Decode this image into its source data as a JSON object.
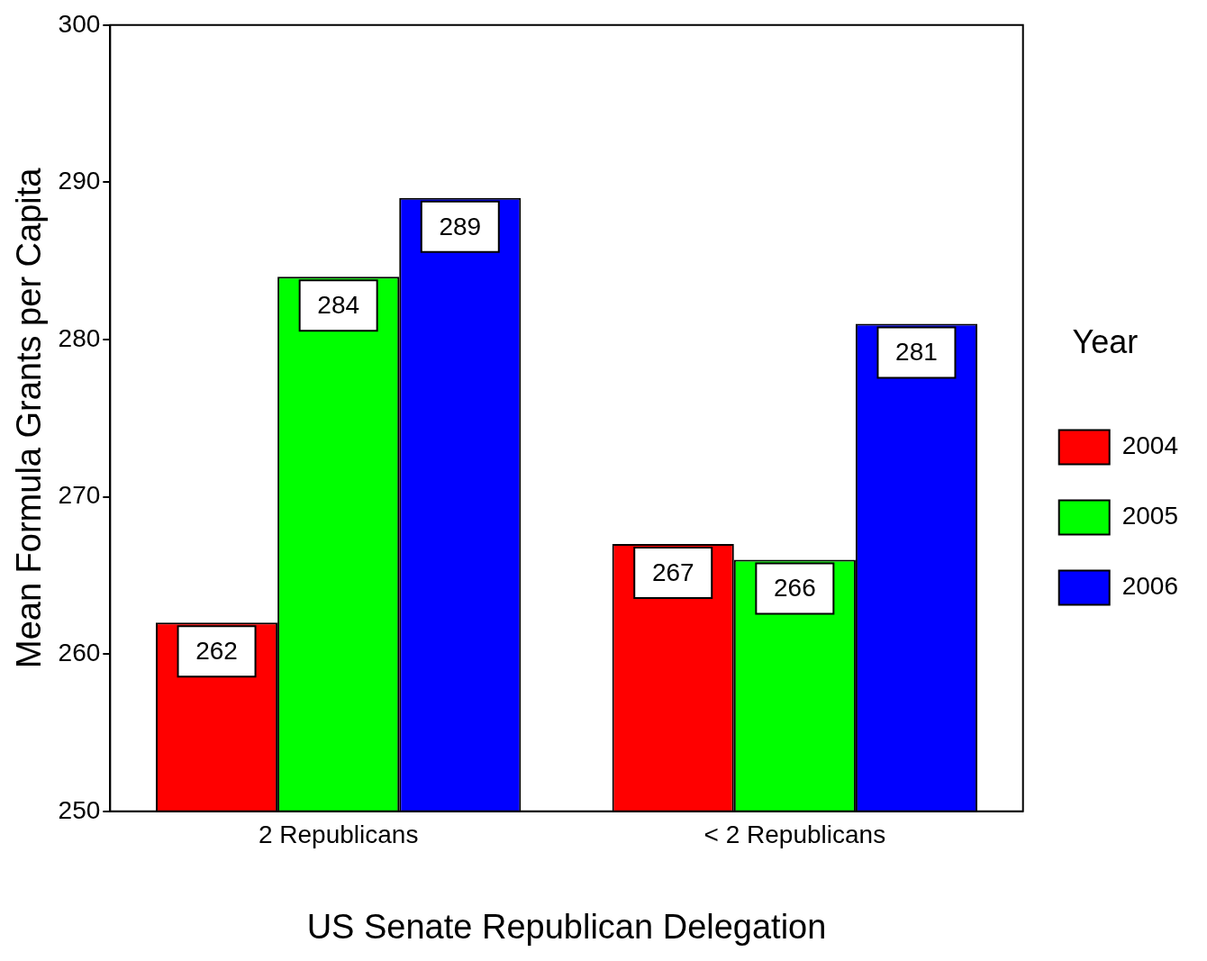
{
  "chart_data": {
    "type": "bar",
    "xlabel": "US Senate Republican Delegation",
    "ylabel": "Mean Formula Grants per Capita",
    "legend_title": "Year",
    "categories": [
      "2 Republicans",
      "< 2 Republicans"
    ],
    "series": [
      {
        "name": "2004",
        "color": "#ff0000",
        "values": [
          262,
          267
        ]
      },
      {
        "name": "2005",
        "color": "#00ff00",
        "values": [
          284,
          266
        ]
      },
      {
        "name": "2006",
        "color": "#0000ff",
        "values": [
          289,
          281
        ]
      }
    ],
    "ylim": [
      250,
      300
    ],
    "yticks": [
      250,
      260,
      270,
      280,
      290,
      300
    ],
    "grid": false,
    "legend": "right",
    "data_labels": true
  }
}
